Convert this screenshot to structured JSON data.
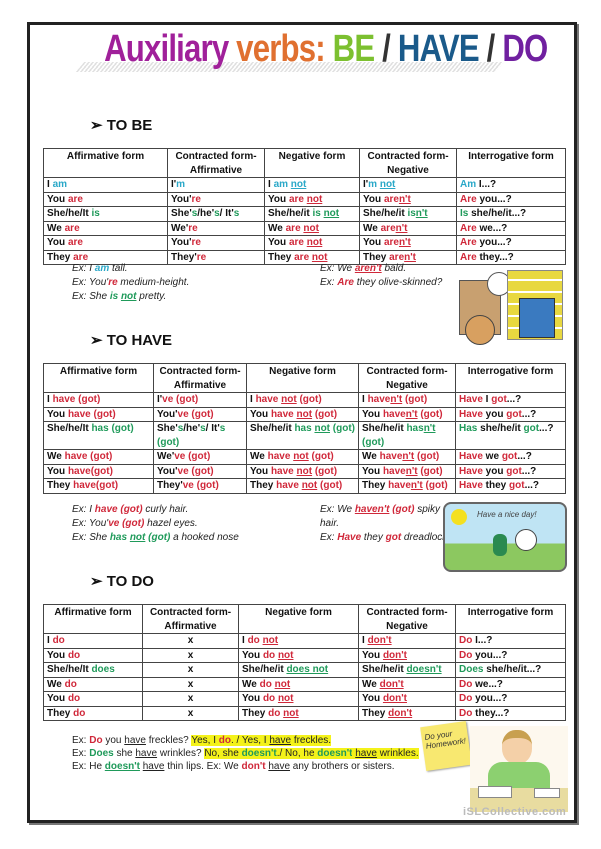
{
  "title": [
    [
      "Auxiliary ",
      "#a0209a"
    ],
    [
      "verbs: ",
      "#e07030"
    ],
    [
      "BE",
      "#7cc030"
    ],
    [
      " / ",
      "#333"
    ],
    [
      "HAVE",
      "#1a5a8a"
    ],
    [
      " / ",
      "#333"
    ],
    [
      "DO",
      "#7020a0"
    ]
  ],
  "colors": {
    "c": "#2aa8c8",
    "r": "#d0283a",
    "g": "#1f9a5a"
  },
  "sections": [
    {
      "heading": "➢ TO BE"
    },
    {
      "heading": "➢ TO HAVE"
    },
    {
      "heading": "➢ TO DO"
    }
  ],
  "headers": [
    "Affirmative form",
    "Contracted form-Affirmative",
    "Negative form",
    "Contracted form-Negative",
    "Interrogative form"
  ],
  "tables": [
    {
      "rows": [
        [
          [
            "I ",
            [
              "am",
              "c"
            ]
          ],
          [
            "I'",
            [
              "m",
              "c"
            ]
          ],
          [
            "I ",
            [
              "am",
              "c"
            ],
            " ",
            [
              "not",
              "c",
              1
            ]
          ],
          [
            "I'",
            [
              "m",
              "c"
            ],
            " ",
            [
              "not",
              "c",
              1
            ]
          ],
          [
            [
              "Am",
              "c"
            ],
            " I...?"
          ]
        ],
        [
          [
            "You ",
            [
              "are",
              "r"
            ]
          ],
          [
            "You'",
            [
              "re",
              "r"
            ]
          ],
          [
            "You ",
            [
              "are",
              "r"
            ],
            " ",
            [
              "not",
              "r",
              1
            ]
          ],
          [
            "You ",
            [
              "are",
              "r"
            ],
            [
              "n't",
              "r",
              1
            ]
          ],
          [
            [
              "Are",
              "r"
            ],
            " you...?"
          ]
        ],
        [
          [
            "She/he/It ",
            [
              "is",
              "g"
            ]
          ],
          [
            "She'",
            [
              "s",
              "g"
            ],
            "/he'",
            [
              "s",
              "g"
            ],
            "/ It'",
            [
              "s",
              "g"
            ]
          ],
          [
            "She/he/it ",
            [
              "is",
              "g"
            ],
            " ",
            [
              "not",
              "g",
              1
            ]
          ],
          [
            "She/he/it ",
            [
              "is",
              "g"
            ],
            [
              "n't",
              "g",
              1
            ]
          ],
          [
            [
              "Is",
              "g"
            ],
            " she/he/it...?"
          ]
        ],
        [
          [
            "We ",
            [
              "are",
              "r"
            ]
          ],
          [
            "We'",
            [
              "re",
              "r"
            ]
          ],
          [
            "We ",
            [
              "are",
              "r"
            ],
            " ",
            [
              "not",
              "r",
              1
            ]
          ],
          [
            "We ",
            [
              "are",
              "r"
            ],
            [
              "n't",
              "r",
              1
            ]
          ],
          [
            [
              "Are",
              "r"
            ],
            " we...?"
          ]
        ],
        [
          [
            "You ",
            [
              "are",
              "r"
            ]
          ],
          [
            "You'",
            [
              "re",
              "r"
            ]
          ],
          [
            "You ",
            [
              "are",
              "r"
            ],
            " ",
            [
              "not",
              "r",
              1
            ]
          ],
          [
            "You ",
            [
              "are",
              "r"
            ],
            [
              "n't",
              "r",
              1
            ]
          ],
          [
            [
              "Are",
              "r"
            ],
            " you...?"
          ]
        ],
        [
          [
            "They ",
            [
              "are",
              "r"
            ]
          ],
          [
            "They'",
            [
              "re",
              "r"
            ]
          ],
          [
            "They ",
            [
              "are",
              "r"
            ],
            " ",
            [
              "not",
              "r",
              1
            ]
          ],
          [
            "They ",
            [
              "are",
              "r"
            ],
            [
              "n't",
              "r",
              1
            ]
          ],
          [
            [
              "Are",
              "r"
            ],
            " they...?"
          ]
        ]
      ]
    },
    {
      "rows": [
        [
          [
            "I ",
            [
              "have (got)",
              "r"
            ]
          ],
          [
            "I'",
            [
              "ve (got)",
              "r"
            ]
          ],
          [
            "I ",
            [
              "have",
              "r"
            ],
            " ",
            [
              "not",
              "r",
              1
            ],
            " ",
            [
              "(got)",
              "r"
            ]
          ],
          [
            "I ",
            [
              "have",
              "r"
            ],
            [
              "n't",
              "r",
              1
            ],
            " ",
            [
              "(got)",
              "r"
            ]
          ],
          [
            [
              "Have",
              "r"
            ],
            " I ",
            [
              "got",
              "r"
            ],
            "...?"
          ]
        ],
        [
          [
            "You ",
            [
              "have (got)",
              "r"
            ]
          ],
          [
            "You'",
            [
              "ve (got)",
              "r"
            ]
          ],
          [
            "You ",
            [
              "have",
              "r"
            ],
            " ",
            [
              "not",
              "r",
              1
            ],
            " ",
            [
              "(got)",
              "r"
            ]
          ],
          [
            "You ",
            [
              "have",
              "r"
            ],
            [
              "n't",
              "r",
              1
            ],
            " ",
            [
              "(got)",
              "r"
            ]
          ],
          [
            [
              "Have",
              "r"
            ],
            " you ",
            [
              "got",
              "r"
            ],
            "...?"
          ]
        ],
        [
          [
            "She/he/It ",
            [
              "has (got)",
              "g"
            ]
          ],
          [
            "She'",
            [
              "s",
              "g"
            ],
            "/he'",
            [
              "s",
              "g"
            ],
            "/ It'",
            [
              "s",
              "g"
            ],
            " ",
            [
              "(got)",
              "g"
            ]
          ],
          [
            "She/he/it ",
            [
              "has",
              "g"
            ],
            " ",
            [
              "not",
              "g",
              1
            ],
            " ",
            [
              "(got)",
              "g"
            ]
          ],
          [
            "She/he/it ",
            [
              "has",
              "g"
            ],
            [
              "n't",
              "g",
              1
            ],
            " ",
            [
              "(got)",
              "g"
            ]
          ],
          [
            [
              "Has",
              "g"
            ],
            " she/he/it ",
            [
              "got",
              "g"
            ],
            "...?"
          ]
        ],
        [
          [
            "We ",
            [
              "have (got)",
              "r"
            ]
          ],
          [
            "We'",
            [
              "ve (got)",
              "r"
            ]
          ],
          [
            "We ",
            [
              "have",
              "r"
            ],
            " ",
            [
              "not",
              "r",
              1
            ],
            " ",
            [
              "(got)",
              "r"
            ]
          ],
          [
            "We ",
            [
              "have",
              "r"
            ],
            [
              "n't",
              "r",
              1
            ],
            " ",
            [
              "(got)",
              "r"
            ]
          ],
          [
            [
              "Have",
              "r"
            ],
            " we ",
            [
              "got",
              "r"
            ],
            "...?"
          ]
        ],
        [
          [
            "You ",
            [
              "have(got)",
              "r"
            ]
          ],
          [
            "You'",
            [
              "ve (got)",
              "r"
            ]
          ],
          [
            "You ",
            [
              "have",
              "r"
            ],
            " ",
            [
              "not",
              "r",
              1
            ],
            " ",
            [
              "(got)",
              "r"
            ]
          ],
          [
            "You ",
            [
              "have",
              "r"
            ],
            [
              "n't",
              "r",
              1
            ],
            " ",
            [
              "(got)",
              "r"
            ]
          ],
          [
            [
              "Have",
              "r"
            ],
            " you ",
            [
              "got",
              "r"
            ],
            "...?"
          ]
        ],
        [
          [
            "They ",
            [
              "have(got)",
              "r"
            ]
          ],
          [
            "They'",
            [
              "ve (got)",
              "r"
            ]
          ],
          [
            "They ",
            [
              "have",
              "r"
            ],
            " ",
            [
              "not",
              "r",
              1
            ],
            " ",
            [
              "(got)",
              "r"
            ]
          ],
          [
            "They ",
            [
              "have",
              "r"
            ],
            [
              "n't",
              "r",
              1
            ],
            " ",
            [
              "(got)",
              "r"
            ]
          ],
          [
            [
              "Have",
              "r"
            ],
            " they ",
            [
              "got",
              "r"
            ],
            "...?"
          ]
        ]
      ]
    },
    {
      "rows": [
        [
          [
            "I ",
            [
              "do",
              "r"
            ]
          ],
          [
            "x"
          ],
          [
            "I ",
            [
              "do",
              "r"
            ],
            " ",
            [
              "not",
              "r",
              1
            ]
          ],
          [
            "I ",
            [
              "don't",
              "r",
              1
            ]
          ],
          [
            [
              "Do",
              "r"
            ],
            " I...?"
          ]
        ],
        [
          [
            "You ",
            [
              "do",
              "r"
            ]
          ],
          [
            "x"
          ],
          [
            "You ",
            [
              "do",
              "r"
            ],
            " ",
            [
              "not",
              "r",
              1
            ]
          ],
          [
            "You ",
            [
              "don't",
              "r",
              1
            ]
          ],
          [
            [
              "Do",
              "r"
            ],
            " you...?"
          ]
        ],
        [
          [
            "She/he/It ",
            [
              "does",
              "g"
            ]
          ],
          [
            "x"
          ],
          [
            "She/he/it ",
            [
              "does not",
              "g",
              1
            ]
          ],
          [
            "She/he/it ",
            [
              "doesn't",
              "g",
              1
            ]
          ],
          [
            [
              "Does",
              "g"
            ],
            " she/he/it...?"
          ]
        ],
        [
          [
            "We ",
            [
              "do",
              "r"
            ]
          ],
          [
            "x"
          ],
          [
            "We ",
            [
              "do",
              "r"
            ],
            " ",
            [
              "not",
              "r",
              1
            ]
          ],
          [
            "We ",
            [
              "don't",
              "r",
              1
            ]
          ],
          [
            [
              "Do",
              "r"
            ],
            " we...?"
          ]
        ],
        [
          [
            "You ",
            [
              "do",
              "r"
            ]
          ],
          [
            "x"
          ],
          [
            "You ",
            [
              "do",
              "r"
            ],
            " ",
            [
              "not",
              "r",
              1
            ]
          ],
          [
            "You ",
            [
              "don't",
              "r",
              1
            ]
          ],
          [
            [
              "Do",
              "r"
            ],
            " you...?"
          ]
        ],
        [
          [
            "They ",
            [
              "do",
              "r"
            ]
          ],
          [
            "x"
          ],
          [
            "They ",
            [
              "do",
              "r"
            ],
            " ",
            [
              "not",
              "r",
              1
            ]
          ],
          [
            "They ",
            [
              "don't",
              "r",
              1
            ]
          ],
          [
            [
              "Do",
              "r"
            ],
            " they...?"
          ]
        ]
      ]
    }
  ],
  "examples": {
    "be_left": [
      [
        "Ex: I ",
        [
          "am",
          "c"
        ],
        " tall."
      ],
      [
        "Ex: You'",
        [
          "re",
          "r"
        ],
        " medium-height."
      ],
      [
        "Ex: She ",
        [
          "is",
          "g"
        ],
        " ",
        [
          "not",
          "g",
          1
        ],
        " pretty."
      ]
    ],
    "be_right": [
      [
        "Ex: We ",
        [
          "aren't",
          "r",
          1
        ],
        " bald."
      ],
      [
        "Ex: ",
        [
          "Are",
          "r"
        ],
        " they olive-skinned?"
      ]
    ],
    "have_left": [
      [
        "Ex: I ",
        [
          "have (got)",
          "r"
        ],
        " curly hair."
      ],
      [
        "Ex: You'",
        [
          "ve (got)",
          "r"
        ],
        " hazel eyes."
      ],
      [
        "Ex: She ",
        [
          "has",
          "g"
        ],
        " ",
        [
          "not",
          "g",
          1
        ],
        " ",
        [
          "(got)",
          "g"
        ],
        " a hooked nose"
      ]
    ],
    "have_right": [
      [
        "Ex: We ",
        [
          "haven't",
          "r",
          1
        ],
        " ",
        [
          "(got)",
          "r"
        ],
        " spiky hair."
      ],
      [
        "Ex: ",
        [
          "Have",
          "r"
        ],
        " they ",
        [
          "got",
          "r"
        ],
        " dreadlocks?"
      ]
    ],
    "do": [
      [
        "Ex: ",
        [
          "Do",
          "r"
        ],
        " you ",
        [
          "have",
          "k",
          1
        ],
        " freckles? ",
        [
          "Yes, I ",
          "k",
          0,
          1
        ],
        [
          "do",
          "r",
          0,
          1
        ],
        [
          ". / Yes, I ",
          "k",
          0,
          1
        ],
        [
          "have",
          "k",
          1,
          1
        ],
        [
          " freckles.",
          "k",
          0,
          1
        ]
      ],
      [
        "Ex: ",
        [
          "Does",
          "g"
        ],
        " she ",
        [
          "have",
          "k",
          1
        ],
        " wrinkles? ",
        [
          "No, she ",
          "k",
          0,
          1
        ],
        [
          "doesn't",
          "g",
          0,
          1
        ],
        [
          "./ No, he ",
          "k",
          0,
          1
        ],
        [
          "doesn't",
          "g",
          0,
          1
        ],
        [
          " ",
          "k",
          0,
          1
        ],
        [
          "have",
          "k",
          1,
          1
        ],
        [
          " wrinkles.",
          "k",
          0,
          1
        ]
      ],
      [
        "Ex: He ",
        [
          "doesn't",
          "g",
          1
        ],
        " ",
        [
          "have",
          "k",
          1
        ],
        " thin lips.   Ex: We ",
        [
          "don't",
          "r"
        ],
        " ",
        [
          "have",
          "k",
          1
        ],
        " any brothers or sisters."
      ]
    ]
  },
  "illustrations": {
    "nice_day": "Have a nice day!",
    "sticky_note": "Do your Homework!",
    "watermark": "iSLCollective.com"
  }
}
